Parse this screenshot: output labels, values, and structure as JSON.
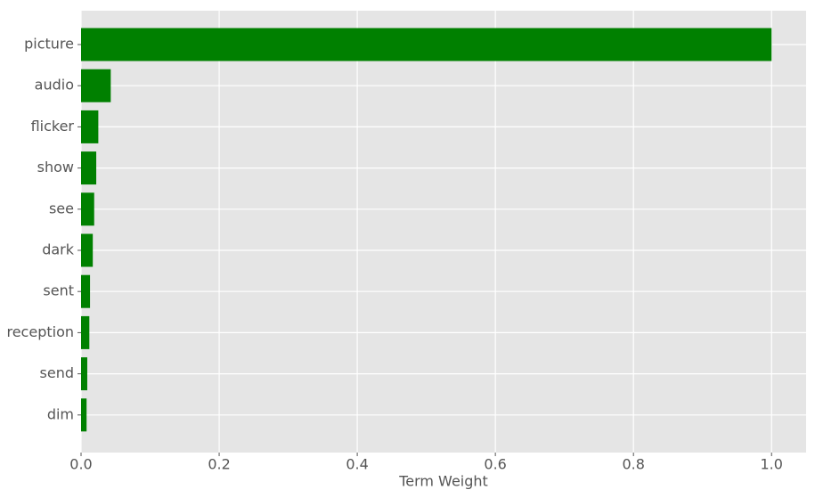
{
  "chart_data": {
    "type": "barh",
    "xlabel": "Term Weight",
    "categories": [
      "picture",
      "audio",
      "flicker",
      "show",
      "see",
      "dark",
      "sent",
      "reception",
      "send",
      "dim"
    ],
    "values": [
      1.0,
      0.043,
      0.025,
      0.022,
      0.019,
      0.017,
      0.013,
      0.012,
      0.009,
      0.008
    ],
    "color": "#008000",
    "xlim": [
      0,
      1.05
    ],
    "xticks": [
      {
        "value": 0,
        "label": "0.0"
      },
      0.2,
      0.4,
      0.6,
      0.8,
      {
        "value": 1,
        "label": "1.0"
      }
    ],
    "grid": true
  }
}
